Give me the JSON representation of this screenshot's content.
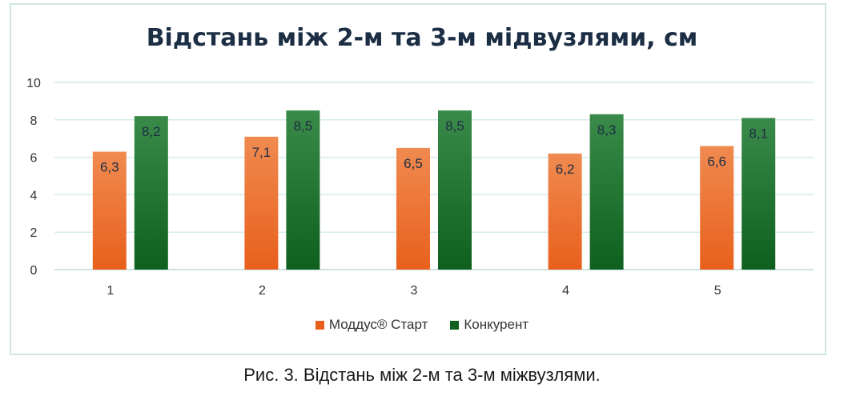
{
  "caption": "Рис. 3. Відстань між 2-м та 3-м міжвузлями.",
  "chart_data": {
    "type": "bar",
    "title": "Відстань між 2-м та 3-м мідвузлями, см",
    "categories": [
      "1",
      "2",
      "3",
      "4",
      "5"
    ],
    "ylim": [
      0,
      10
    ],
    "yticks": [
      "0",
      "2",
      "4",
      "6",
      "8",
      "10"
    ],
    "grid": true,
    "legend_position": "bottom",
    "series": [
      {
        "name": "Моддус® Старт",
        "values": [
          6.3,
          7.1,
          6.5,
          6.2,
          6.6
        ],
        "labels": [
          "6,3",
          "7,1",
          "6,5",
          "6,2",
          "6,6"
        ],
        "color_top": "#f08a50",
        "color_bottom": "#e8601c"
      },
      {
        "name": "Конкурент",
        "values": [
          8.2,
          8.5,
          8.5,
          8.3,
          8.1
        ],
        "labels": [
          "8,2",
          "8,5",
          "8,5",
          "8,3",
          "8,1"
        ],
        "color_top": "#3a8a4a",
        "color_bottom": "#0f5f1f"
      }
    ]
  }
}
